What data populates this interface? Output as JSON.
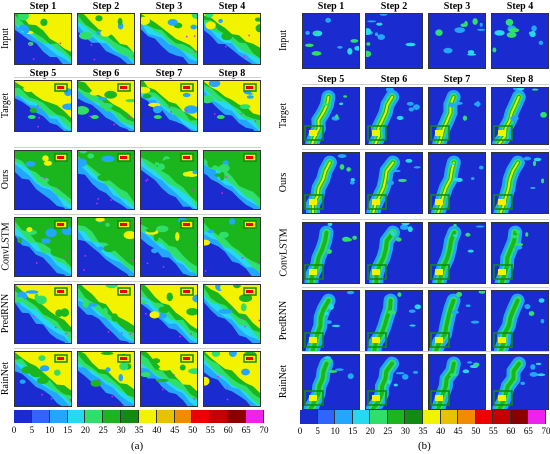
{
  "panel_a": {
    "input_steps": [
      "Step 1",
      "Step 2",
      "Step 3",
      "Step 4"
    ],
    "output_steps": [
      "Step 5",
      "Step 6",
      "Step 7",
      "Step 8"
    ],
    "rows": [
      "Input",
      "Target",
      "Ours",
      "ConvLSTM",
      "PredRNN",
      "RainNet"
    ],
    "caption": "(a)"
  },
  "panel_b": {
    "input_steps": [
      "Step 1",
      "Step 2",
      "Step 3",
      "Step 4"
    ],
    "output_steps": [
      "Step 5",
      "Step 6",
      "Step 7",
      "Step 8"
    ],
    "rows": [
      "Input",
      "Target",
      "Ours",
      "ConvLSTM",
      "PredRNN",
      "RainNet"
    ],
    "caption": "(b)"
  },
  "colorbar": {
    "ticks": [
      "0",
      "5",
      "10",
      "15",
      "20",
      "25",
      "30",
      "35",
      "40",
      "45",
      "50",
      "55",
      "60",
      "65",
      "70"
    ],
    "colors": [
      "#1a2bcf",
      "#2f64ff",
      "#22a6ff",
      "#27d9ee",
      "#2ee06a",
      "#1bb51e",
      "#138a12",
      "#f3f300",
      "#e8c200",
      "#f38b00",
      "#ee0000",
      "#c40000",
      "#8a0000",
      "#ee22ee",
      "#9a7ae0"
    ]
  }
}
